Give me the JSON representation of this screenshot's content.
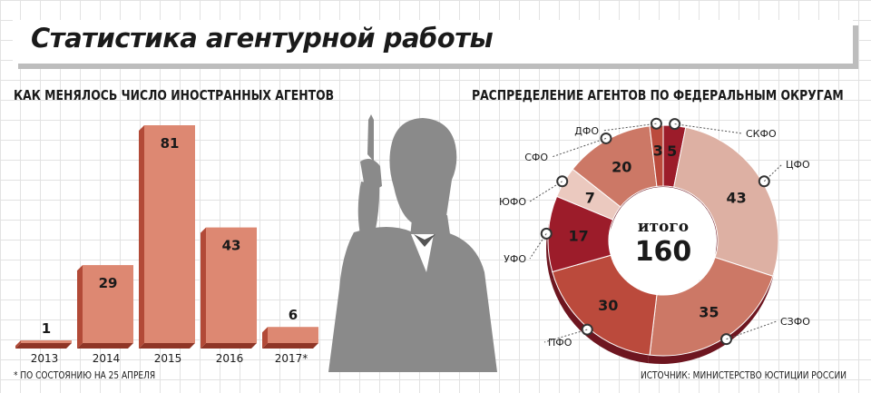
{
  "header": {
    "title": "Статистика агентурной работы"
  },
  "source_note": "ИСТОЧНИК: МИНИСТЕРСТВО ЮСТИЦИИ РОССИИ",
  "colors": {
    "bar_face": "#dd8872",
    "bar_side": "#b24a37",
    "bar_top": "#e9ab98",
    "silhouette": "#8a8a8a",
    "ring_dark": "#9c1c2a",
    "ring_red": "#bb4a3c",
    "ring_mid": "#cc7866",
    "ring_light": "#ddb0a3",
    "ring_pale": "#ebc9bf"
  },
  "chart_data": [
    {
      "type": "bar",
      "title": "КАК МЕНЯЛОСЬ ЧИСЛО ИНОСТРАННЫХ АГЕНТОВ",
      "categories": [
        "2013",
        "2014",
        "2015",
        "2016",
        "2017*"
      ],
      "values": [
        1,
        29,
        81,
        43,
        6
      ],
      "ylim": [
        0,
        81
      ],
      "grid": true,
      "footnote": "* ПО СОСТОЯНИЮ НА 25 АПРЕЛЯ"
    },
    {
      "type": "pie",
      "title": "РАСПРЕДЕЛЕНИЕ АГЕНТОВ ПО ФЕДЕРАЛЬНЫМ ОКРУГАМ",
      "center_label": "итого",
      "center_value": "160",
      "slices": [
        {
          "label": "СКФО",
          "value": 5,
          "color": "#9c1c2a"
        },
        {
          "label": "ЦФО",
          "value": 43,
          "color": "#ddb0a3"
        },
        {
          "label": "СЗФО",
          "value": 35,
          "color": "#cc7866"
        },
        {
          "label": "ПФО",
          "value": 30,
          "color": "#bb4a3c"
        },
        {
          "label": "УФО",
          "value": 17,
          "color": "#9c1c2a"
        },
        {
          "label": "ЮФО",
          "value": 7,
          "color": "#ebc9bf"
        },
        {
          "label": "СФО",
          "value": 20,
          "color": "#cc7866"
        },
        {
          "label": "ДФО",
          "value": 3,
          "color": "#bb4a3c"
        }
      ]
    }
  ]
}
